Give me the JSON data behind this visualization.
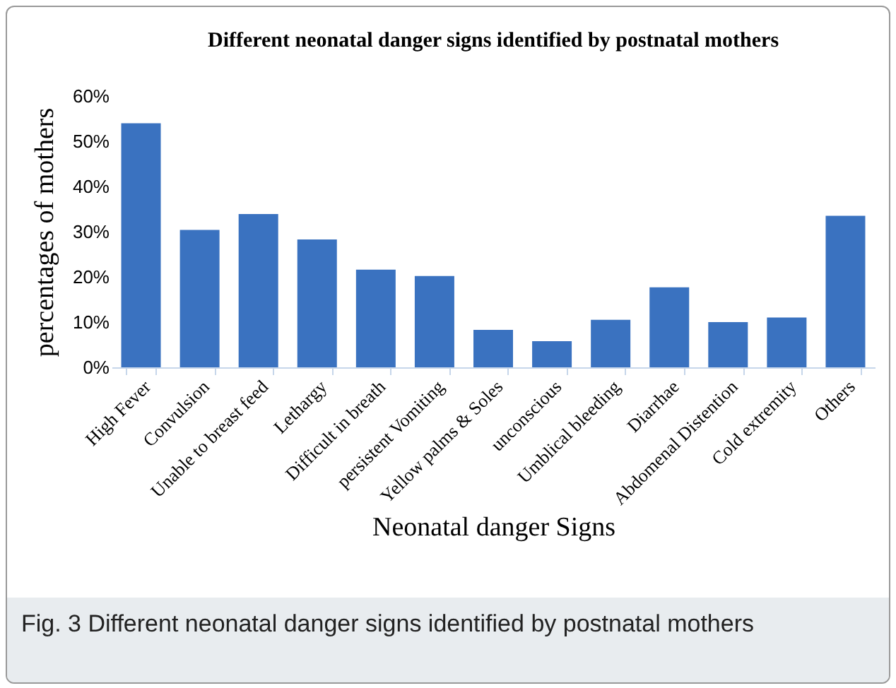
{
  "chart_data": {
    "type": "bar",
    "title": "Different neonatal danger signs identified by postnatal mothers",
    "xlabel": "Neonatal danger Signs",
    "ylabel": "percentages of mothers",
    "categories": [
      "High Fever",
      "Convulsion",
      "Unable to breast feed",
      "Lethargy",
      "Difficult in breath",
      "persistent Vomiting",
      "Yellow palms & Soles",
      "unconscious",
      "Umblical bleeding",
      "Diarrhae",
      "Abdomenal Distention",
      "Cold  extremity",
      "Others"
    ],
    "values": [
      54,
      30.4,
      33.9,
      28.3,
      21.6,
      20.2,
      8.3,
      5.8,
      10.5,
      17.7,
      10.0,
      11.0,
      33.5
    ],
    "color": "#3a72c0",
    "ylim": [
      0,
      60
    ],
    "yticks": [
      {
        "value": 0,
        "label": "0%"
      },
      {
        "value": 10,
        "label": "10%"
      },
      {
        "value": 20,
        "label": "20%"
      },
      {
        "value": 30,
        "label": "30%"
      },
      {
        "value": 40,
        "label": "40%"
      },
      {
        "value": 50,
        "label": "50%"
      },
      {
        "value": 60,
        "label": "60%"
      }
    ],
    "grid": false,
    "annotations": [
      "Fig. 3 Different neonatal danger signs identified by postnatal mothers"
    ]
  }
}
